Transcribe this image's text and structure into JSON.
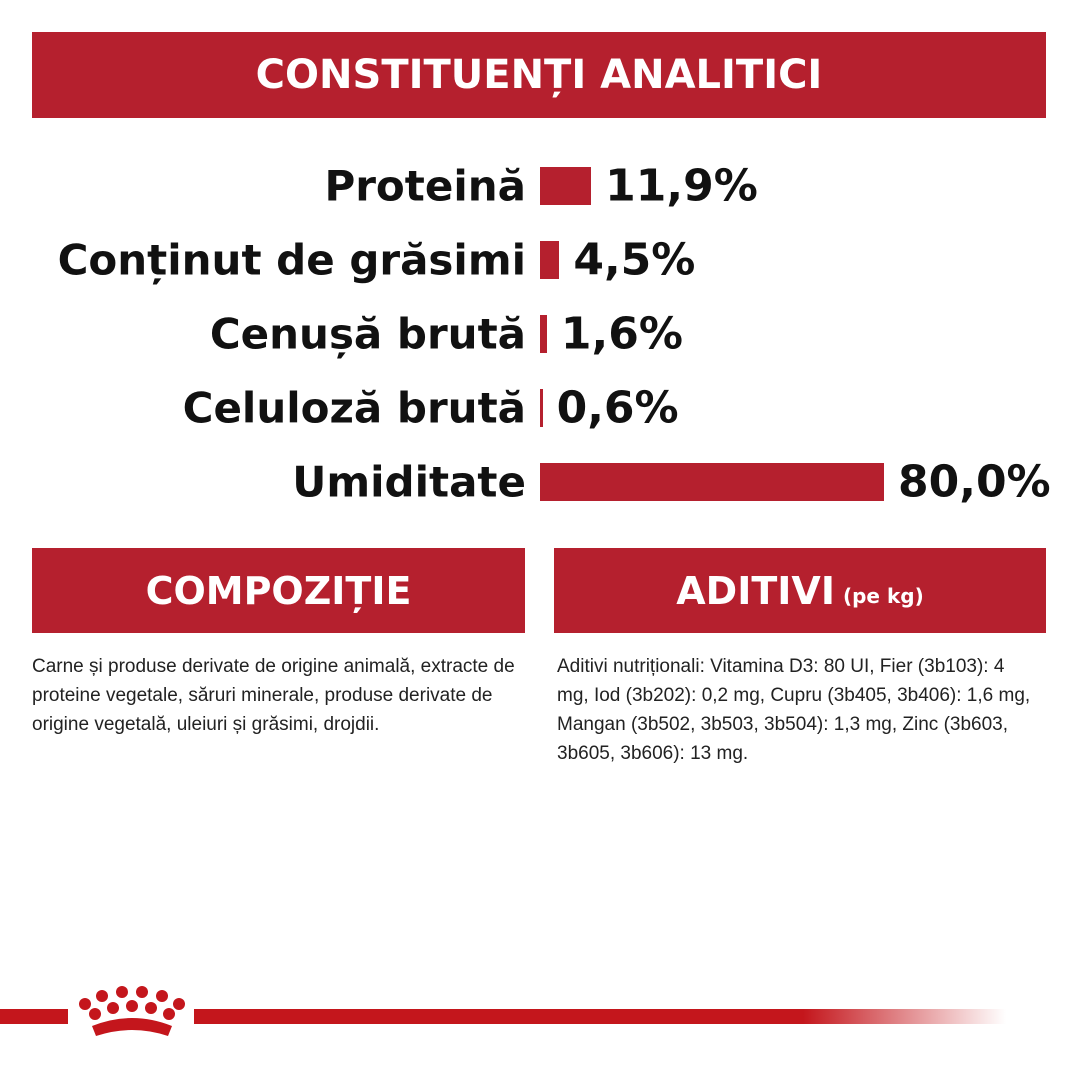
{
  "header": {
    "title": "CONSTITUENȚI ANALITICI"
  },
  "chart_data": {
    "type": "bar",
    "orientation": "horizontal",
    "categories": [
      "Proteină",
      "Conținut de grăsimi",
      "Cenușă brută",
      "Celuloză brută",
      "Umiditate"
    ],
    "values": [
      11.9,
      4.5,
      1.6,
      0.6,
      80.0
    ],
    "value_labels": [
      "11,9%",
      "4,5%",
      "1,6%",
      "0,6%",
      "80,0%"
    ],
    "color": "#b5202e"
  },
  "composition": {
    "title": "COMPOZIȚIE",
    "text": "Carne și produse derivate de origine animală, extracte de proteine vegetale, săruri minerale, produse derivate de origine vegetală, uleiuri și grăsimi, drojdii."
  },
  "additives": {
    "title": "ADITIVI",
    "unit_note": "(pe kg)",
    "text": "Aditivi nutriționali: Vitamina D3: 80 UI, Fier (3b103): 4 mg, Iod (3b202): 0,2 mg, Cupru (3b405, 3b406): 1,6 mg, Mangan (3b502, 3b503, 3b504): 1,3 mg, Zinc (3b603, 3b605, 3b606): 13 mg."
  }
}
